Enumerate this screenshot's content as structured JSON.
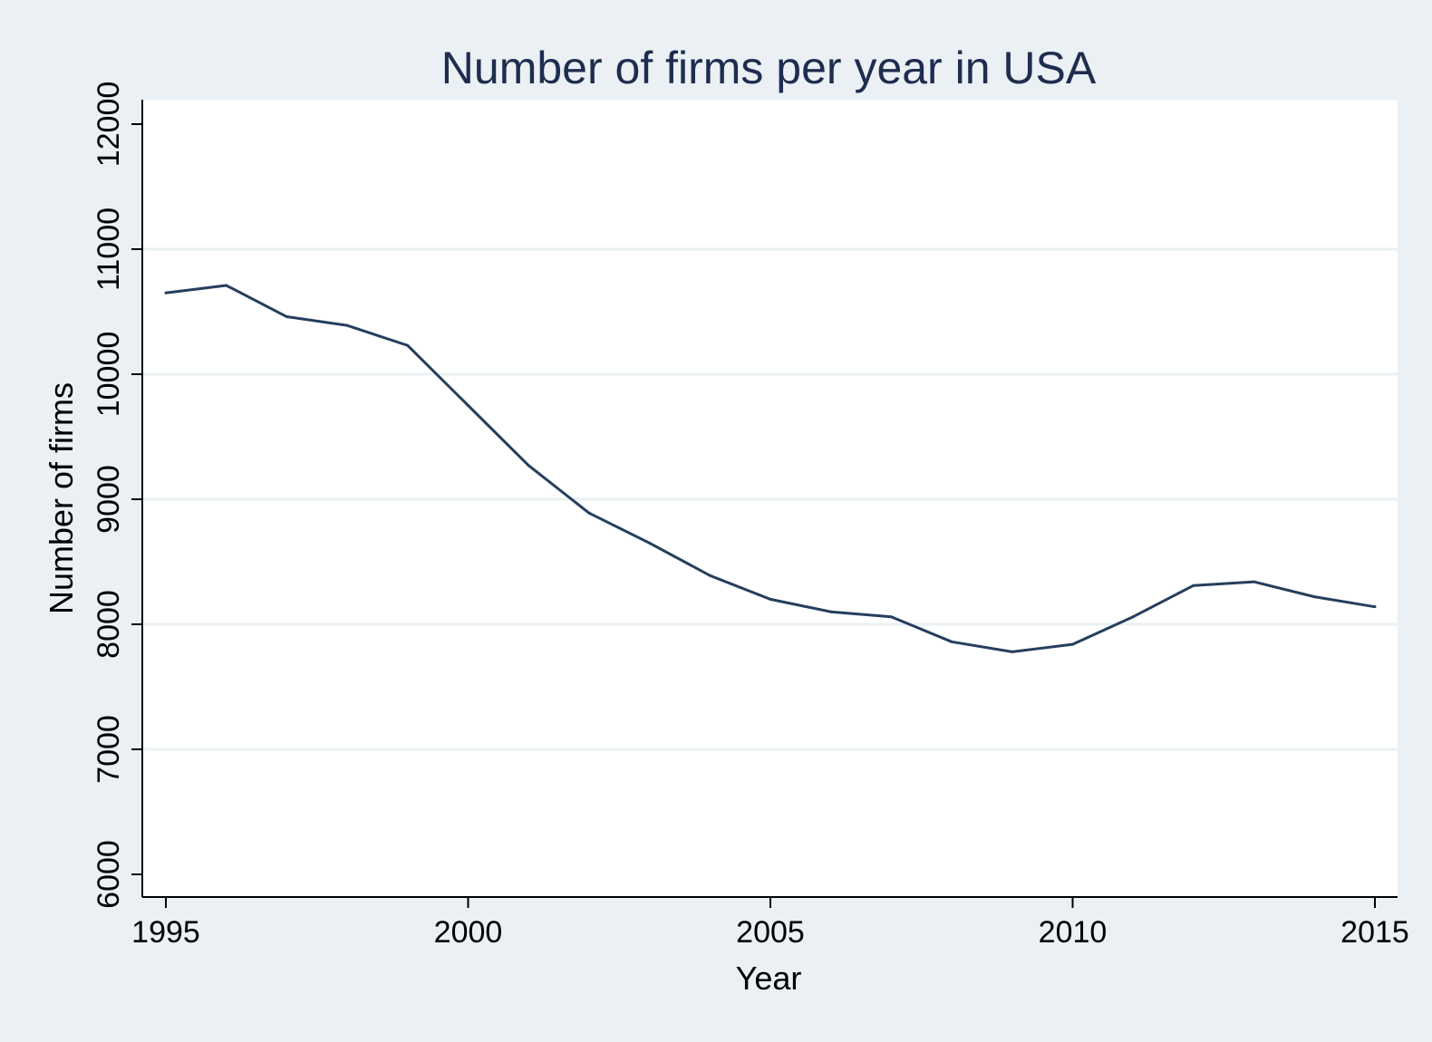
{
  "chart_data": {
    "type": "line",
    "title": "Number of firms per year in USA",
    "xlabel": "Year",
    "ylabel": "Number of firms",
    "xlim": [
      1995,
      2015
    ],
    "ylim": [
      6000,
      12000
    ],
    "xticks": [
      1995,
      2000,
      2005,
      2010,
      2015
    ],
    "yticks": [
      6000,
      7000,
      8000,
      9000,
      10000,
      11000,
      12000
    ],
    "grid": true,
    "legend": "none",
    "series": [
      {
        "x": [
          1995,
          1996,
          1997,
          1998,
          1999,
          2000,
          2001,
          2002,
          2003,
          2004,
          2005,
          2006,
          2007,
          2008,
          2009,
          2010,
          2011,
          2012,
          2013,
          2014,
          2015
        ],
        "values": [
          10650,
          10710,
          10460,
          10390,
          10230,
          9750,
          9270,
          8890,
          8650,
          8390,
          8200,
          8100,
          8060,
          7860,
          7780,
          7840,
          8060,
          8310,
          8340,
          8220,
          8140
        ],
        "color": "#253e5e"
      }
    ],
    "colors": {
      "background": "#eaf0f3",
      "plot_background": "#ffffff",
      "gridline": "#eaf0f3",
      "axis": "#000000",
      "title": "#1e2d4f",
      "line": "#253e5e"
    }
  }
}
